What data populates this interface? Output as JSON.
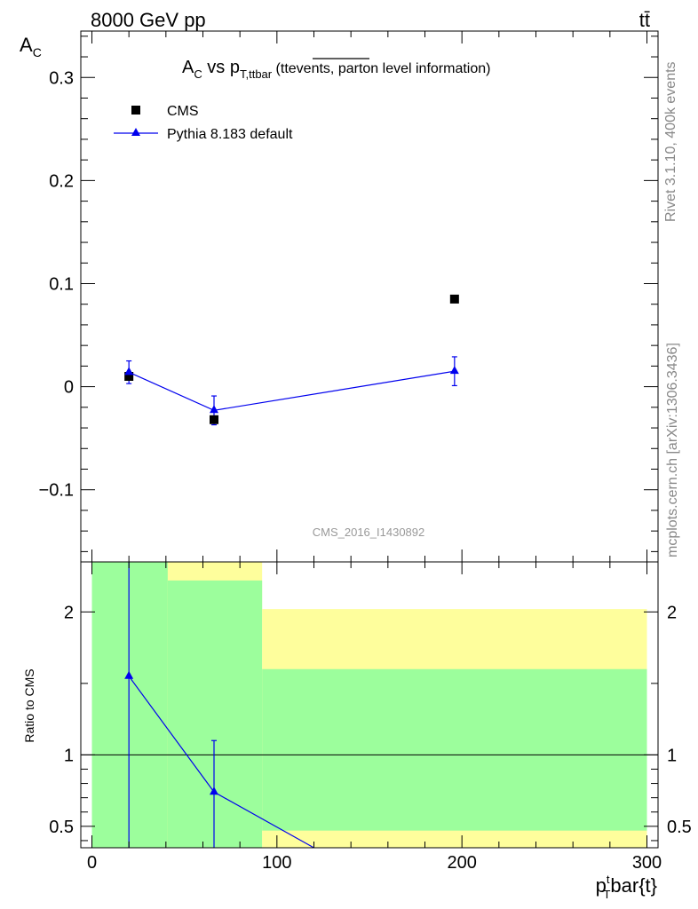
{
  "header": {
    "energy_label": "8000 GeV pp",
    "process_label": "tt̄",
    "side_rivet": "Rivet 3.1.10,  400k events",
    "side_mcplots": "mcplots.cern.ch [arXiv:1306.3436]",
    "analysis_id": "CMS_2016_I1430892"
  },
  "title": {
    "main": "A",
    "main_sub": "C",
    "vs": " vs p",
    "vs_sub": "T,ttbar",
    "paren_open": " (",
    "tt_events": "ttevents,",
    "rest": " parton level information)"
  },
  "axes": {
    "y_main_label": "A",
    "y_main_label_sub": "C",
    "y_ratio_label": "Ratio to CMS",
    "x_label": "bar{t}",
    "x_label_main": "p",
    "x_label_sub": "T",
    "x_label_sup": "t"
  },
  "legend": {
    "entries": [
      {
        "name": "CMS",
        "marker": "square",
        "color": "#000000"
      },
      {
        "name": "Pythia 8.183 default",
        "marker": "triangle",
        "color": "#0000ee"
      }
    ]
  },
  "colors": {
    "mc": "#0000ee",
    "data": "#000000",
    "band_inner": "#9cfe9c",
    "band_outer": "#fefe9c"
  },
  "chart_data": [
    {
      "type": "scatter",
      "name": "main",
      "xlim": [
        -6,
        306
      ],
      "ylim": [
        -0.17,
        0.345
      ],
      "yticks": [
        -0.1,
        0,
        0.1,
        0.2,
        0.3
      ],
      "ytick_labels": [
        "−0.1",
        "0",
        "0.1",
        "0.2",
        "0.3"
      ],
      "series": [
        {
          "name": "CMS",
          "x": [
            20,
            66,
            196
          ],
          "y": [
            0.01,
            -0.032,
            0.085
          ]
        },
        {
          "name": "Pythia 8.183 default",
          "x": [
            20,
            66,
            196
          ],
          "y": [
            0.014,
            -0.023,
            0.015
          ],
          "yerr": [
            0.011,
            0.014,
            0.014
          ]
        }
      ]
    },
    {
      "type": "line",
      "name": "ratio",
      "xlim": [
        -6,
        306
      ],
      "ylim": [
        0.35,
        2.35
      ],
      "yticks": [
        0.5,
        1,
        2
      ],
      "ytick_labels": [
        "0.5",
        "1",
        "2"
      ],
      "xticks": [
        0,
        100,
        200,
        300
      ],
      "xtick_labels": [
        "0",
        "100",
        "200",
        "300"
      ],
      "series": [
        {
          "name": "Pythia 8.183 default",
          "x": [
            20,
            66,
            120
          ],
          "y": [
            1.55,
            0.74,
            0.35
          ],
          "yerr_low": [
            1.55,
            0.74,
            0
          ],
          "yerr_high": [
            1.2,
            0.36,
            0
          ]
        }
      ],
      "bands": [
        {
          "x": [
            0,
            41
          ],
          "inner": [
            0.35,
            2.35
          ],
          "outer": [
            0.35,
            2.35
          ]
        },
        {
          "x": [
            41,
            92
          ],
          "inner": [
            0.35,
            2.22
          ],
          "outer": [
            0.35,
            2.35
          ]
        },
        {
          "x": [
            92,
            300
          ],
          "inner": [
            0.47,
            1.6
          ],
          "outer": [
            0.35,
            2.02
          ]
        }
      ]
    }
  ]
}
